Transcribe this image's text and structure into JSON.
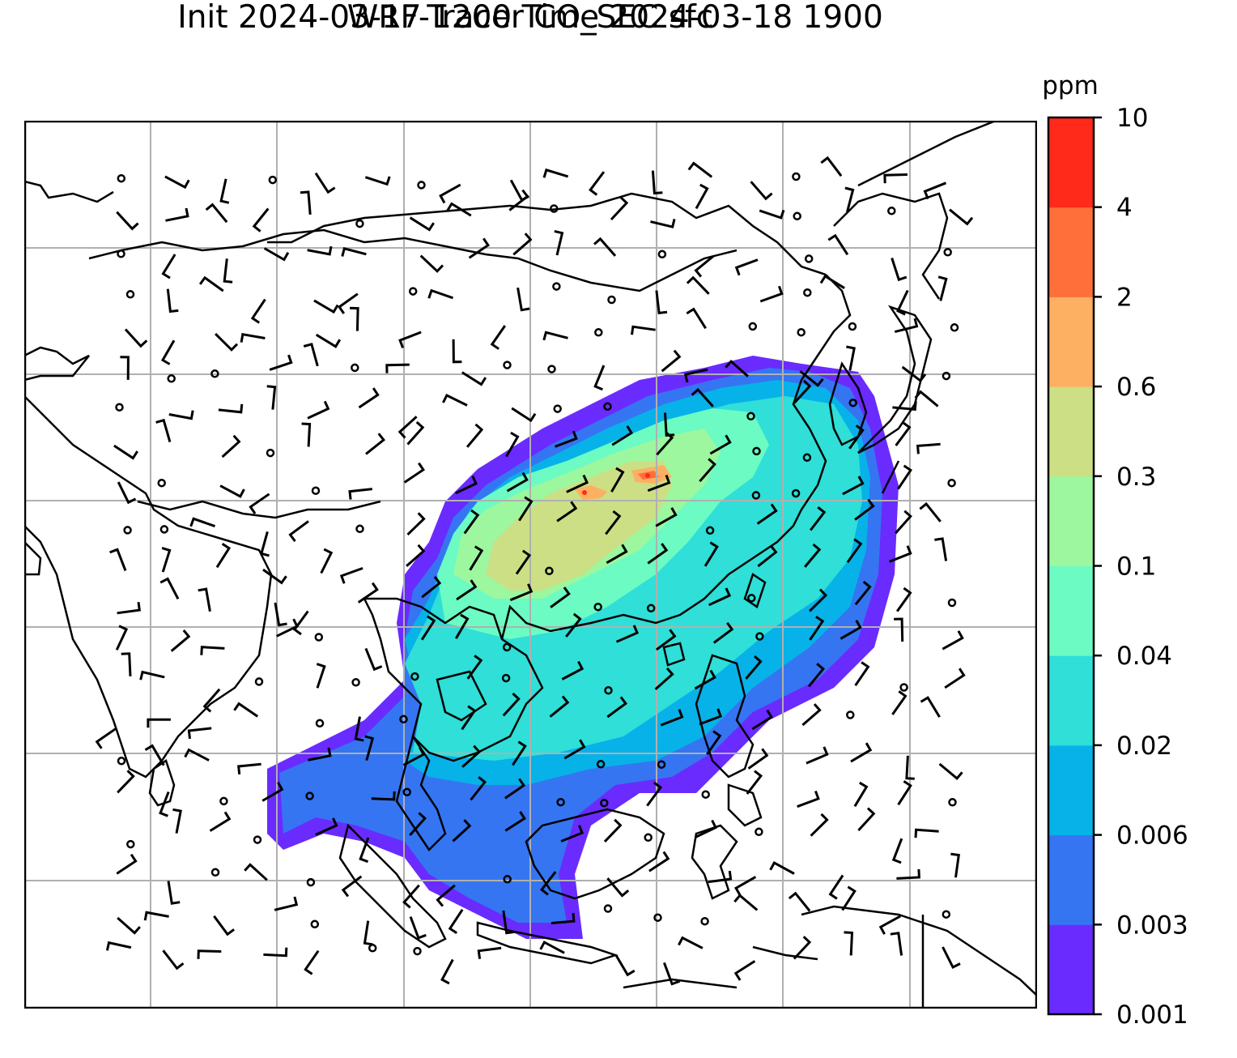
{
  "title_line1": "WRF-Tracer CO_SEC sfc",
  "title_line2": "Init 2024-03-17 1200 Time 2024-03-18 1900",
  "colorbar": {
    "unit": "ppm",
    "levels": [
      "0.001",
      "0.003",
      "0.006",
      "0.02",
      "0.04",
      "0.1",
      "0.3",
      "0.6",
      "2",
      "4",
      "10"
    ],
    "colors": [
      "#6a2bff",
      "#3575f2",
      "#07b2e8",
      "#2fdfd8",
      "#6bfbc3",
      "#9cf79e",
      "#ccdf85",
      "#fdaf62",
      "#fe6f3a",
      "#ff2a1a"
    ]
  },
  "map": {
    "gridlines": true,
    "gridline_color": "#b0b0b0",
    "coastline_color": "#000000",
    "field": "CO_SEC tracer concentration at surface",
    "overlay": "wind barbs"
  }
}
